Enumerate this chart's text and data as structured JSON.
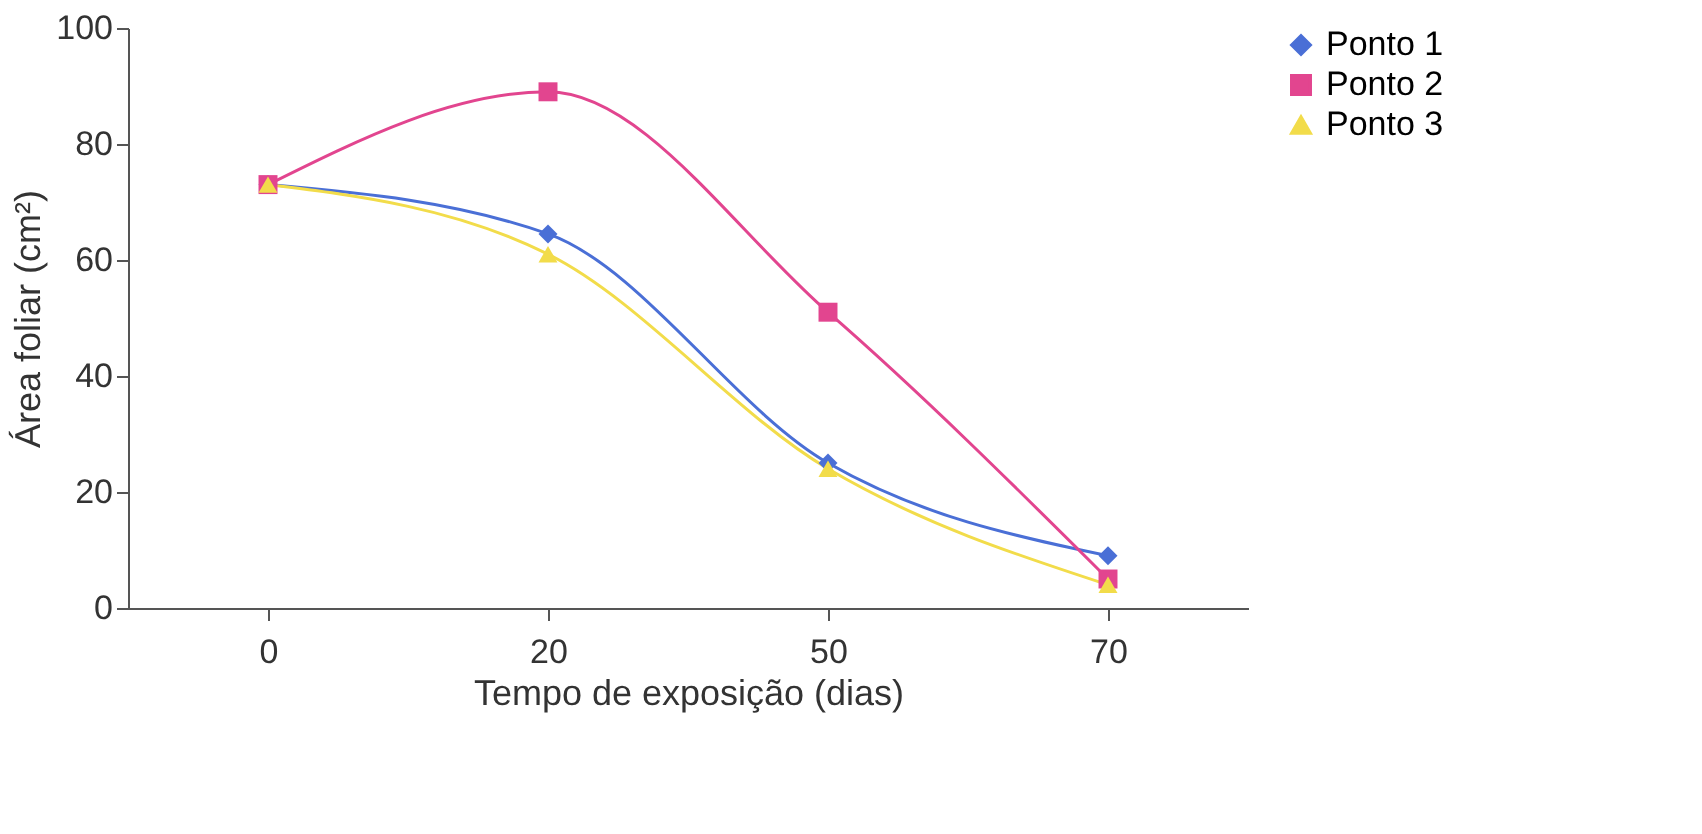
{
  "chart_data": {
    "type": "line",
    "xlabel": "Tempo de exposição (dias)",
    "ylabel": "Área foliar (cm²)",
    "categories": [
      "0",
      "20",
      "50",
      "70"
    ],
    "series": [
      {
        "name": "Ponto 1",
        "color": "#4a6fd6",
        "marker": "diamond",
        "values": [
          73,
          64.5,
          25,
          9
        ]
      },
      {
        "name": "Ponto 2",
        "color": "#e2458f",
        "marker": "square",
        "values": [
          73,
          89,
          51,
          5
        ]
      },
      {
        "name": "Ponto 3",
        "color": "#f2dc4a",
        "marker": "triangle",
        "values": [
          73,
          61,
          24,
          4
        ]
      }
    ],
    "ylim": [
      0,
      100
    ],
    "yticks": [
      0,
      20,
      40,
      60,
      80,
      100
    ],
    "grid": false,
    "legend": "right"
  }
}
